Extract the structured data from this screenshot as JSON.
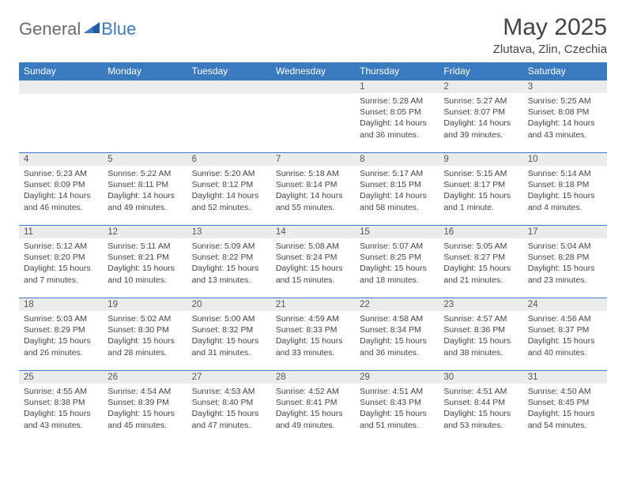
{
  "logo": {
    "general": "General",
    "blue": "Blue"
  },
  "header": {
    "title": "May 2025",
    "location": "Zlutava, Zlin, Czechia"
  },
  "colors": {
    "header_bg": "#3a7abf",
    "header_text": "#ffffff",
    "daynum_bg": "#ececec",
    "row_divider": "#3a7abf",
    "body_text": "#444444"
  },
  "weekdays": [
    "Sunday",
    "Monday",
    "Tuesday",
    "Wednesday",
    "Thursday",
    "Friday",
    "Saturday"
  ],
  "weeks": [
    [
      null,
      null,
      null,
      null,
      {
        "day": "1",
        "sunrise": "Sunrise: 5:28 AM",
        "sunset": "Sunset: 8:05 PM",
        "daylight": "Daylight: 14 hours and 36 minutes."
      },
      {
        "day": "2",
        "sunrise": "Sunrise: 5:27 AM",
        "sunset": "Sunset: 8:07 PM",
        "daylight": "Daylight: 14 hours and 39 minutes."
      },
      {
        "day": "3",
        "sunrise": "Sunrise: 5:25 AM",
        "sunset": "Sunset: 8:08 PM",
        "daylight": "Daylight: 14 hours and 43 minutes."
      }
    ],
    [
      {
        "day": "4",
        "sunrise": "Sunrise: 5:23 AM",
        "sunset": "Sunset: 8:09 PM",
        "daylight": "Daylight: 14 hours and 46 minutes."
      },
      {
        "day": "5",
        "sunrise": "Sunrise: 5:22 AM",
        "sunset": "Sunset: 8:11 PM",
        "daylight": "Daylight: 14 hours and 49 minutes."
      },
      {
        "day": "6",
        "sunrise": "Sunrise: 5:20 AM",
        "sunset": "Sunset: 8:12 PM",
        "daylight": "Daylight: 14 hours and 52 minutes."
      },
      {
        "day": "7",
        "sunrise": "Sunrise: 5:18 AM",
        "sunset": "Sunset: 8:14 PM",
        "daylight": "Daylight: 14 hours and 55 minutes."
      },
      {
        "day": "8",
        "sunrise": "Sunrise: 5:17 AM",
        "sunset": "Sunset: 8:15 PM",
        "daylight": "Daylight: 14 hours and 58 minutes."
      },
      {
        "day": "9",
        "sunrise": "Sunrise: 5:15 AM",
        "sunset": "Sunset: 8:17 PM",
        "daylight": "Daylight: 15 hours and 1 minute."
      },
      {
        "day": "10",
        "sunrise": "Sunrise: 5:14 AM",
        "sunset": "Sunset: 8:18 PM",
        "daylight": "Daylight: 15 hours and 4 minutes."
      }
    ],
    [
      {
        "day": "11",
        "sunrise": "Sunrise: 5:12 AM",
        "sunset": "Sunset: 8:20 PM",
        "daylight": "Daylight: 15 hours and 7 minutes."
      },
      {
        "day": "12",
        "sunrise": "Sunrise: 5:11 AM",
        "sunset": "Sunset: 8:21 PM",
        "daylight": "Daylight: 15 hours and 10 minutes."
      },
      {
        "day": "13",
        "sunrise": "Sunrise: 5:09 AM",
        "sunset": "Sunset: 8:22 PM",
        "daylight": "Daylight: 15 hours and 13 minutes."
      },
      {
        "day": "14",
        "sunrise": "Sunrise: 5:08 AM",
        "sunset": "Sunset: 8:24 PM",
        "daylight": "Daylight: 15 hours and 15 minutes."
      },
      {
        "day": "15",
        "sunrise": "Sunrise: 5:07 AM",
        "sunset": "Sunset: 8:25 PM",
        "daylight": "Daylight: 15 hours and 18 minutes."
      },
      {
        "day": "16",
        "sunrise": "Sunrise: 5:05 AM",
        "sunset": "Sunset: 8:27 PM",
        "daylight": "Daylight: 15 hours and 21 minutes."
      },
      {
        "day": "17",
        "sunrise": "Sunrise: 5:04 AM",
        "sunset": "Sunset: 8:28 PM",
        "daylight": "Daylight: 15 hours and 23 minutes."
      }
    ],
    [
      {
        "day": "18",
        "sunrise": "Sunrise: 5:03 AM",
        "sunset": "Sunset: 8:29 PM",
        "daylight": "Daylight: 15 hours and 26 minutes."
      },
      {
        "day": "19",
        "sunrise": "Sunrise: 5:02 AM",
        "sunset": "Sunset: 8:30 PM",
        "daylight": "Daylight: 15 hours and 28 minutes."
      },
      {
        "day": "20",
        "sunrise": "Sunrise: 5:00 AM",
        "sunset": "Sunset: 8:32 PM",
        "daylight": "Daylight: 15 hours and 31 minutes."
      },
      {
        "day": "21",
        "sunrise": "Sunrise: 4:59 AM",
        "sunset": "Sunset: 8:33 PM",
        "daylight": "Daylight: 15 hours and 33 minutes."
      },
      {
        "day": "22",
        "sunrise": "Sunrise: 4:58 AM",
        "sunset": "Sunset: 8:34 PM",
        "daylight": "Daylight: 15 hours and 36 minutes."
      },
      {
        "day": "23",
        "sunrise": "Sunrise: 4:57 AM",
        "sunset": "Sunset: 8:36 PM",
        "daylight": "Daylight: 15 hours and 38 minutes."
      },
      {
        "day": "24",
        "sunrise": "Sunrise: 4:56 AM",
        "sunset": "Sunset: 8:37 PM",
        "daylight": "Daylight: 15 hours and 40 minutes."
      }
    ],
    [
      {
        "day": "25",
        "sunrise": "Sunrise: 4:55 AM",
        "sunset": "Sunset: 8:38 PM",
        "daylight": "Daylight: 15 hours and 43 minutes."
      },
      {
        "day": "26",
        "sunrise": "Sunrise: 4:54 AM",
        "sunset": "Sunset: 8:39 PM",
        "daylight": "Daylight: 15 hours and 45 minutes."
      },
      {
        "day": "27",
        "sunrise": "Sunrise: 4:53 AM",
        "sunset": "Sunset: 8:40 PM",
        "daylight": "Daylight: 15 hours and 47 minutes."
      },
      {
        "day": "28",
        "sunrise": "Sunrise: 4:52 AM",
        "sunset": "Sunset: 8:41 PM",
        "daylight": "Daylight: 15 hours and 49 minutes."
      },
      {
        "day": "29",
        "sunrise": "Sunrise: 4:51 AM",
        "sunset": "Sunset: 8:43 PM",
        "daylight": "Daylight: 15 hours and 51 minutes."
      },
      {
        "day": "30",
        "sunrise": "Sunrise: 4:51 AM",
        "sunset": "Sunset: 8:44 PM",
        "daylight": "Daylight: 15 hours and 53 minutes."
      },
      {
        "day": "31",
        "sunrise": "Sunrise: 4:50 AM",
        "sunset": "Sunset: 8:45 PM",
        "daylight": "Daylight: 15 hours and 54 minutes."
      }
    ]
  ]
}
